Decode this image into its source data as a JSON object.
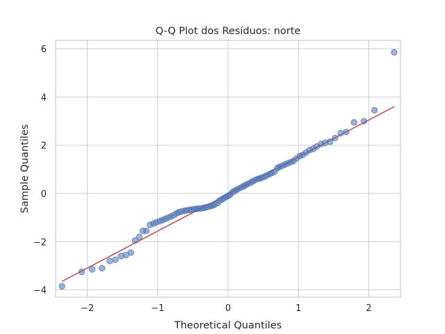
{
  "chart_data": {
    "type": "scatter",
    "title": "Q-Q Plot dos Resíduos: norte",
    "xlabel": "Theoretical Quantiles",
    "ylabel": "Sample Quantiles",
    "xlim": [
      -2.45,
      2.45
    ],
    "ylim": [
      -4.3,
      6.35
    ],
    "xticks": [
      -2,
      -1,
      0,
      1,
      2
    ],
    "yticks": [
      -4,
      -2,
      0,
      2,
      4,
      6
    ],
    "grid": true,
    "legend": "none",
    "colors": {
      "points": "#4c72b0",
      "line": "#c44e52",
      "grid": "#cccccc",
      "frame": "#cccccc"
    },
    "reference_line": {
      "x": [
        -2.36,
        2.36
      ],
      "y": [
        -3.65,
        3.6
      ]
    },
    "points": {
      "x": [
        -2.36,
        -2.08,
        -1.93,
        -1.79,
        -1.68,
        -1.6,
        -1.52,
        -1.45,
        -1.38,
        -1.32,
        -1.26,
        -1.21,
        -1.16,
        -1.11,
        -1.06,
        -1.02,
        -0.97,
        -0.93,
        -0.89,
        -0.85,
        -0.81,
        -0.77,
        -0.73,
        -0.7,
        -0.66,
        -0.62,
        -0.59,
        -0.55,
        -0.52,
        -0.48,
        -0.45,
        -0.42,
        -0.38,
        -0.35,
        -0.32,
        -0.28,
        -0.25,
        -0.22,
        -0.19,
        -0.15,
        -0.12,
        -0.09,
        -0.06,
        -0.03,
        0.0,
        0.03,
        0.06,
        0.09,
        0.12,
        0.15,
        0.19,
        0.22,
        0.25,
        0.28,
        0.32,
        0.35,
        0.38,
        0.42,
        0.45,
        0.48,
        0.52,
        0.55,
        0.59,
        0.62,
        0.66,
        0.7,
        0.73,
        0.77,
        0.81,
        0.85,
        0.89,
        0.93,
        0.97,
        1.02,
        1.06,
        1.11,
        1.16,
        1.21,
        1.26,
        1.32,
        1.38,
        1.45,
        1.52,
        1.6,
        1.68,
        1.79,
        1.93,
        2.08,
        2.36
      ],
      "y": [
        -3.85,
        -3.25,
        -3.15,
        -3.1,
        -2.8,
        -2.75,
        -2.6,
        -2.55,
        -2.45,
        -1.95,
        -1.8,
        -1.55,
        -1.55,
        -1.3,
        -1.25,
        -1.2,
        -1.15,
        -1.1,
        -1.05,
        -1.0,
        -0.95,
        -0.9,
        -0.82,
        -0.78,
        -0.75,
        -0.72,
        -0.7,
        -0.68,
        -0.67,
        -0.65,
        -0.64,
        -0.63,
        -0.62,
        -0.6,
        -0.58,
        -0.55,
        -0.52,
        -0.5,
        -0.46,
        -0.4,
        -0.3,
        -0.25,
        -0.2,
        -0.15,
        -0.1,
        -0.05,
        0.05,
        0.1,
        0.15,
        0.2,
        0.25,
        0.3,
        0.35,
        0.4,
        0.45,
        0.5,
        0.55,
        0.6,
        0.62,
        0.66,
        0.7,
        0.75,
        0.8,
        0.85,
        0.9,
        1.05,
        1.1,
        1.15,
        1.2,
        1.25,
        1.3,
        1.35,
        1.45,
        1.55,
        1.6,
        1.7,
        1.8,
        1.85,
        1.95,
        2.05,
        2.1,
        2.15,
        2.3,
        2.5,
        2.55,
        2.95,
        3.0,
        3.45,
        5.85
      ]
    }
  }
}
